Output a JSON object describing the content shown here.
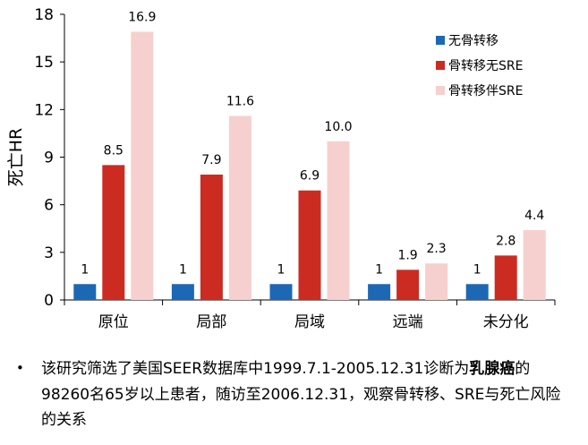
{
  "chart_data": {
    "type": "bar",
    "title": "",
    "xlabel": "",
    "ylabel": "死亡HR",
    "ylim": [
      0,
      18
    ],
    "yticks": [
      "0",
      "3",
      "6",
      "9",
      "12",
      "15",
      "18"
    ],
    "categories": [
      "原位",
      "局部",
      "局域",
      "远端",
      "未分化"
    ],
    "series": [
      {
        "name": "无骨转移",
        "color": "#1c68b5",
        "values": [
          1,
          1,
          1,
          1,
          1
        ],
        "labels": [
          "1",
          "1",
          "1",
          "1",
          "1"
        ]
      },
      {
        "name": "骨转移无SRE",
        "color": "#cc2b22",
        "values": [
          8.5,
          7.9,
          6.9,
          1.9,
          2.8
        ],
        "labels": [
          "8.5",
          "7.9",
          "6.9",
          "1.9",
          "2.8"
        ]
      },
      {
        "name": "骨转移伴SRE",
        "color": "#f6d0ce",
        "values": [
          16.9,
          11.6,
          10.0,
          2.3,
          4.4
        ],
        "labels": [
          "16.9",
          "11.6",
          "10.0",
          "2.3",
          "4.4"
        ]
      }
    ],
    "legend_position": "top-right",
    "grid": false
  },
  "note": {
    "bullet": "•",
    "text_before": "该研究筛选了美国SEER数据库中1999.7.1-2005.12.31诊断为",
    "text_bold": "乳腺癌",
    "text_after": "的98260名65岁以上患者，随访至2006.12.31，观察骨转移、SRE与死亡风险的关系"
  }
}
